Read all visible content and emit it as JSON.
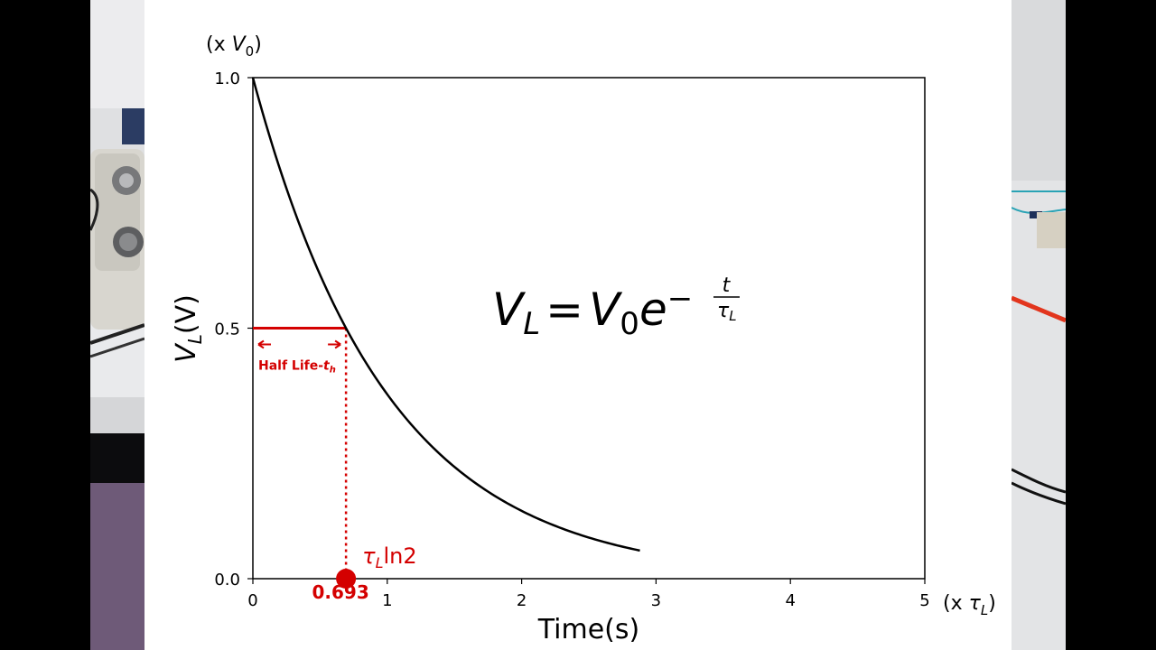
{
  "colors": {
    "curve": "#000000",
    "annotation": "#d40000",
    "axes": "#000000",
    "panel_background": "#ffffff"
  },
  "chart_data": {
    "type": "line",
    "title": "",
    "xlabel": "Time(s)",
    "ylabel_main": "V",
    "ylabel_sub": "L",
    "ylabel_suffix": "(V)",
    "y_unit_prefix": "(x ",
    "y_unit_var": "V",
    "y_unit_sub": "0",
    "y_unit_suffix": ")",
    "x_unit_prefix": "(x ",
    "x_unit_var": "τ",
    "x_unit_sub": "L",
    "x_unit_suffix": ")",
    "xlim": [
      0,
      5
    ],
    "ylim": [
      0,
      1
    ],
    "x_ticks": [
      0,
      1,
      2,
      3,
      4,
      5
    ],
    "y_ticks": [
      0.0,
      0.5,
      1.0
    ],
    "y_tick_labels": [
      "0.0",
      "0.5",
      "1.0"
    ],
    "grid": false,
    "series": [
      {
        "function": "exp(-x)",
        "x": [
          0,
          0.25,
          0.5,
          0.693,
          1.0,
          1.5,
          2.0,
          2.5,
          2.88
        ],
        "values": [
          1.0,
          0.779,
          0.607,
          0.5,
          0.368,
          0.223,
          0.135,
          0.082,
          0.056
        ]
      }
    ],
    "equation": {
      "lhs_var": "V",
      "lhs_sub": "L",
      "equals": "=",
      "rhs_var": "V",
      "rhs_sub": "0",
      "base": "e",
      "minus": "−",
      "exp_num": "t",
      "exp_den_var": "τ",
      "exp_den_sub": "L"
    },
    "annotations": {
      "half_life_level": 0.5,
      "half_life_time": 0.693,
      "half_life_prefix": "Half Life-",
      "half_life_var": "t",
      "half_life_sub": "h",
      "marker_value_label": "0.693",
      "tau_var": "τ",
      "tau_sub": "L",
      "tau_suffix": "ln2"
    }
  }
}
